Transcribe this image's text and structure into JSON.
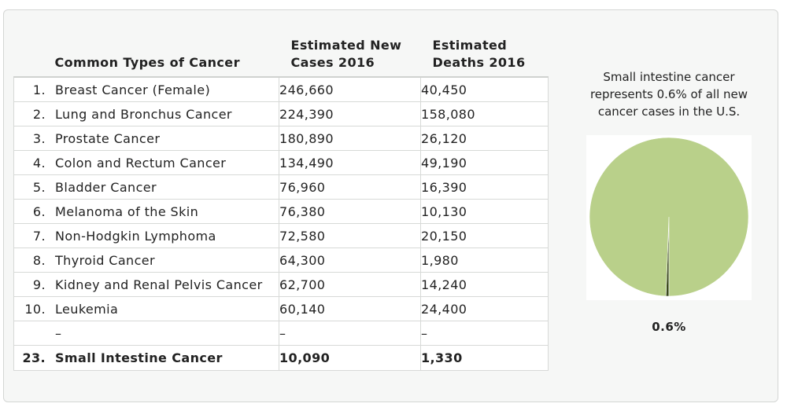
{
  "table": {
    "headers": {
      "type": "Common Types of Cancer",
      "new_cases": [
        "Estimated New",
        "Cases 2016"
      ],
      "deaths": [
        "Estimated",
        "Deaths 2016"
      ]
    },
    "rows": [
      {
        "rank": "1.",
        "name": "Breast Cancer (Female)",
        "new_cases": "246,660",
        "deaths": "40,450"
      },
      {
        "rank": "2.",
        "name": "Lung and Bronchus Cancer",
        "new_cases": "224,390",
        "deaths": "158,080"
      },
      {
        "rank": "3.",
        "name": "Prostate Cancer",
        "new_cases": "180,890",
        "deaths": "26,120"
      },
      {
        "rank": "4.",
        "name": "Colon and Rectum Cancer",
        "new_cases": "134,490",
        "deaths": "49,190"
      },
      {
        "rank": "5.",
        "name": "Bladder Cancer",
        "new_cases": "76,960",
        "deaths": "16,390"
      },
      {
        "rank": "6.",
        "name": "Melanoma of the Skin",
        "new_cases": "76,380",
        "deaths": "10,130"
      },
      {
        "rank": "7.",
        "name": "Non-Hodgkin Lymphoma",
        "new_cases": "72,580",
        "deaths": "20,150"
      },
      {
        "rank": "8.",
        "name": "Thyroid Cancer",
        "new_cases": "64,300",
        "deaths": "1,980"
      },
      {
        "rank": "9.",
        "name": "Kidney and Renal Pelvis Cancer",
        "new_cases": "62,700",
        "deaths": "14,240"
      },
      {
        "rank": "10.",
        "name": "Leukemia",
        "new_cases": "60,140",
        "deaths": "24,400"
      },
      {
        "rank": "",
        "name": "–",
        "new_cases": "–",
        "deaths": "–"
      },
      {
        "rank": "23.",
        "name": "Small Intestine Cancer",
        "new_cases": "10,090",
        "deaths": "1,330"
      }
    ]
  },
  "chart_data": {
    "type": "pie",
    "title_lines": [
      "Small intestine cancer",
      "represents 0.6% of all new",
      "cancer cases in the U.S."
    ],
    "slices": [
      {
        "label": "Small intestine cancer",
        "value": 0.6,
        "color": "#3b4a1c"
      },
      {
        "label": "",
        "value": 99.4,
        "color": "#b9d08a"
      }
    ],
    "data_label": "0.6%"
  }
}
